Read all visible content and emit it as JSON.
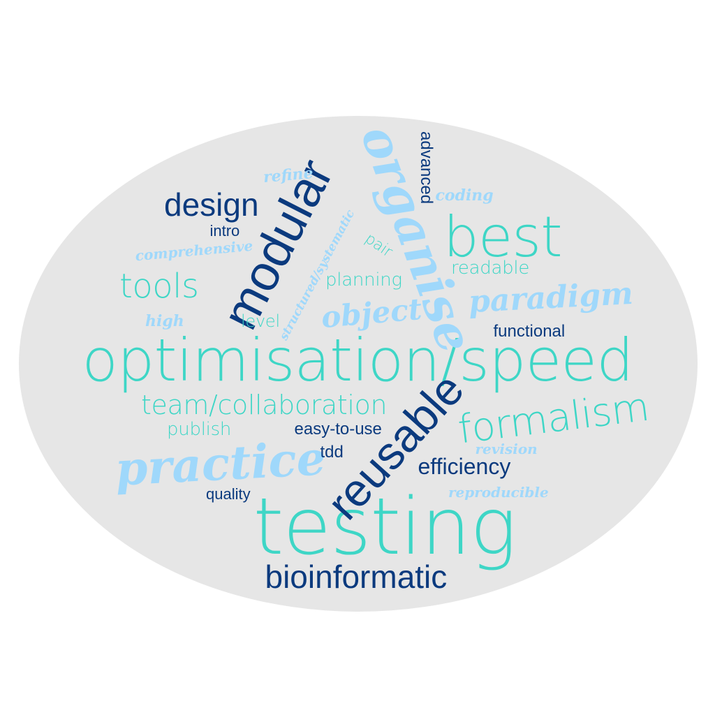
{
  "colors": {
    "background": "#ffffff",
    "oval": "#e6e6e6",
    "dark_blue": "#0b3a7e",
    "teal": "#3ed6c6",
    "light_blue": "#9fd8fb"
  },
  "words": [
    {
      "id": "optimisation-speed",
      "text": "optimisation/speed",
      "color": "teal",
      "style": "light",
      "size": 84,
      "rotate": 0
    },
    {
      "id": "testing",
      "text": "testing",
      "color": "teal",
      "style": "light",
      "size": 112,
      "rotate": 0
    },
    {
      "id": "modular",
      "text": "modular",
      "color": "dark_blue",
      "style": "sans",
      "size": 72,
      "rotate": -63
    },
    {
      "id": "reusable",
      "text": "reusable",
      "color": "dark_blue",
      "style": "sans",
      "size": 66,
      "rotate": -48
    },
    {
      "id": "organise",
      "text": "organise",
      "color": "light_blue",
      "style": "script",
      "size": 70,
      "rotate": 70
    },
    {
      "id": "best",
      "text": "best",
      "color": "teal",
      "style": "light",
      "size": 80,
      "rotate": 0
    },
    {
      "id": "practice",
      "text": "practice",
      "color": "light_blue",
      "style": "script",
      "size": 66,
      "rotate": -3
    },
    {
      "id": "formalism",
      "text": "formalism",
      "color": "teal",
      "style": "light",
      "size": 56,
      "rotate": -7
    },
    {
      "id": "bioinformatic",
      "text": "bioinformatic",
      "color": "dark_blue",
      "style": "sans",
      "size": 46,
      "rotate": 0
    },
    {
      "id": "team-collaboration",
      "text": "team/collaboration",
      "color": "teal",
      "style": "light",
      "size": 38,
      "rotate": 0
    },
    {
      "id": "design",
      "text": "design",
      "color": "dark_blue",
      "style": "sans",
      "size": 46,
      "rotate": 0
    },
    {
      "id": "tools",
      "text": "tools",
      "color": "teal",
      "style": "light",
      "size": 48,
      "rotate": 0
    },
    {
      "id": "paradigm",
      "text": "paradigm",
      "color": "light_blue",
      "style": "script",
      "size": 44,
      "rotate": -3
    },
    {
      "id": "object",
      "text": "object",
      "color": "light_blue",
      "style": "script",
      "size": 42,
      "rotate": -5
    },
    {
      "id": "efficiency",
      "text": "efficiency",
      "color": "dark_blue",
      "style": "sans",
      "size": 32,
      "rotate": 0
    },
    {
      "id": "functional",
      "text": "functional",
      "color": "dark_blue",
      "style": "sans",
      "size": 24,
      "rotate": 0
    },
    {
      "id": "easy-to-use",
      "text": "easy-to-use",
      "color": "dark_blue",
      "style": "sans",
      "size": 24,
      "rotate": 0
    },
    {
      "id": "tdd",
      "text": "tdd",
      "color": "dark_blue",
      "style": "sans",
      "size": 24,
      "rotate": 0
    },
    {
      "id": "quality",
      "text": "quality",
      "color": "dark_blue",
      "style": "sans",
      "size": 22,
      "rotate": 0
    },
    {
      "id": "intro",
      "text": "intro",
      "color": "dark_blue",
      "style": "sans",
      "size": 22,
      "rotate": 0
    },
    {
      "id": "advanced",
      "text": "advanced",
      "color": "dark_blue",
      "style": "sans",
      "size": 24,
      "rotate": 90
    },
    {
      "id": "planning",
      "text": "planning",
      "color": "teal",
      "style": "light",
      "size": 26,
      "rotate": 0
    },
    {
      "id": "readable",
      "text": "readable",
      "color": "teal",
      "style": "light",
      "size": 26,
      "rotate": 0
    },
    {
      "id": "publish",
      "text": "publish",
      "color": "teal",
      "style": "light",
      "size": 26,
      "rotate": 0
    },
    {
      "id": "level",
      "text": "level",
      "color": "teal",
      "style": "light",
      "size": 24,
      "rotate": 0
    },
    {
      "id": "pair",
      "text": "pair",
      "color": "teal",
      "style": "light",
      "size": 22,
      "rotate": 35
    },
    {
      "id": "refine",
      "text": "refine",
      "color": "light_blue",
      "style": "script",
      "size": 22,
      "rotate": -5
    },
    {
      "id": "coding",
      "text": "coding",
      "color": "light_blue",
      "style": "script",
      "size": 22,
      "rotate": 0
    },
    {
      "id": "comprehensive",
      "text": "comprehensive",
      "color": "light_blue",
      "style": "script",
      "size": 20,
      "rotate": -5
    },
    {
      "id": "structured-systematic",
      "text": "structured/systematic",
      "color": "light_blue",
      "style": "script",
      "size": 17,
      "rotate": -62
    },
    {
      "id": "high",
      "text": "high",
      "color": "light_blue",
      "style": "script",
      "size": 22,
      "rotate": 0
    },
    {
      "id": "revision",
      "text": "revision",
      "color": "light_blue",
      "style": "script",
      "size": 20,
      "rotate": 0
    },
    {
      "id": "reproducible",
      "text": "reproducible",
      "color": "light_blue",
      "style": "script",
      "size": 20,
      "rotate": 0
    }
  ]
}
